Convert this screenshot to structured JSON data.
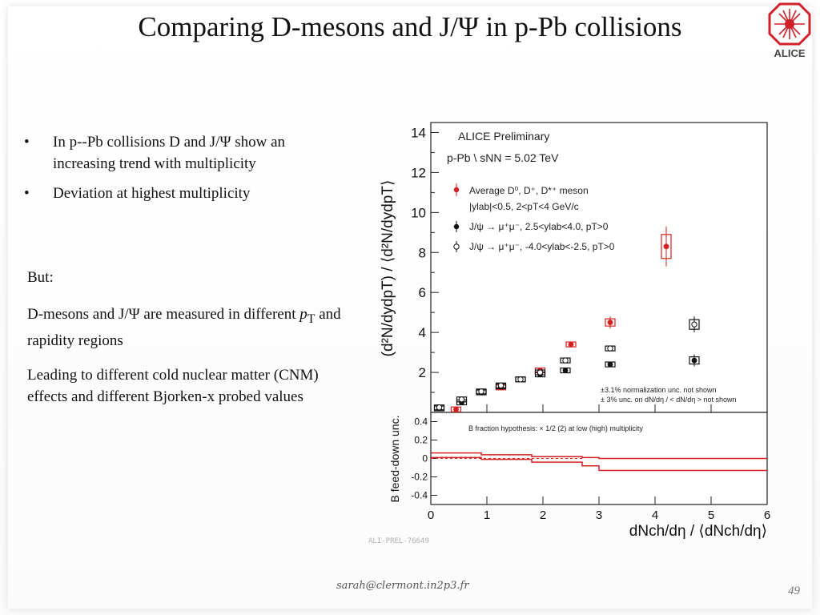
{
  "title": "Comparing D-mesons and J/Ψ in p-Pb collisions",
  "logo": {
    "text": "ALICE",
    "icon": "alice-logo-icon",
    "color": "#d0202a"
  },
  "bullets": [
    {
      "symbol": "•",
      "text": "In p--Pb collisions D and J/Ψ show an increasing trend with multiplicity"
    },
    {
      "symbol": "•",
      "text": "Deviation at highest multiplicity"
    }
  ],
  "but_label": "But:",
  "paragraph1": {
    "prefix": "D-mesons and J/Ψ are measured in different ",
    "pt": "p",
    "pt_sub": "T",
    "suffix": " and rapidity regions"
  },
  "paragraph2": "Leading to different cold nuclear matter (CNM) effects and different Bjorken-x probed values",
  "footer": {
    "email": "sarah@clermont.in2p3.fr",
    "page": "49"
  },
  "colors": {
    "red": "#d42020",
    "black": "#111111"
  },
  "chart_data": [
    {
      "type": "scatter",
      "ylim": [
        0,
        14.5
      ],
      "xlim": [
        0,
        6
      ],
      "yticks": [
        2,
        4,
        6,
        8,
        10,
        12,
        14
      ],
      "ylabel": "(d²N/dydpT) / ⟨d²N/dydpT⟩",
      "texts": {
        "preliminary": "ALICE Preliminary",
        "system": "p-Pb \\ sNN = 5.02 TeV",
        "note1": "±3.1% normalization unc. not shown",
        "note2": "±  3% unc. on dN/dη / < dN/dη > not shown"
      },
      "legend": [
        {
          "label": "Average D⁰, D⁺, D*⁺ meson",
          "sublabel": "|ylab|<0.5, 2<pT<4 GeV/c",
          "marker": "filled",
          "color": "#d42020"
        },
        {
          "label": "J/ψ → μ⁺μ⁻, 2.5<ylab<4.0, pT>0",
          "marker": "filled",
          "color": "#111111"
        },
        {
          "label": "J/ψ → μ⁺μ⁻, -4.0<ylab<-2.5, pT>0",
          "marker": "open",
          "color": "#111111"
        }
      ],
      "series": [
        {
          "name": "Average D⁰, D⁺, D*⁺ meson",
          "marker": "filled",
          "color": "#d42020",
          "x": [
            0.45,
            1.25,
            1.95,
            2.5,
            3.2,
            4.2
          ],
          "y": [
            0.15,
            1.25,
            2.1,
            3.4,
            4.5,
            8.3
          ],
          "err": [
            0.05,
            0.05,
            0.1,
            0.15,
            0.3,
            1.0
          ]
        },
        {
          "name": "J/ψ → μ⁺μ⁻, 2.5<ylab<4.0, pT>0",
          "marker": "filled",
          "color": "#111111",
          "x": [
            0.15,
            0.55,
            0.9,
            1.25,
            1.6,
            1.95,
            2.4,
            3.2,
            4.7
          ],
          "y": [
            0.2,
            0.5,
            1.0,
            1.3,
            1.65,
            1.9,
            2.1,
            2.4,
            2.6
          ],
          "err": [
            0.05,
            0.05,
            0.05,
            0.05,
            0.05,
            0.1,
            0.1,
            0.1,
            0.3
          ]
        },
        {
          "name": "J/ψ → μ⁺μ⁻, -4.0<ylab<-2.5, pT>0",
          "marker": "open",
          "color": "#111111",
          "x": [
            0.15,
            0.55,
            0.9,
            1.25,
            1.6,
            1.95,
            2.4,
            3.2,
            4.7
          ],
          "y": [
            0.25,
            0.65,
            1.05,
            1.35,
            1.65,
            2.0,
            2.6,
            3.2,
            4.4
          ],
          "err": [
            0.05,
            0.05,
            0.05,
            0.05,
            0.05,
            0.1,
            0.1,
            0.15,
            0.4
          ]
        }
      ]
    },
    {
      "type": "line",
      "ylabel": "B feed-down unc.",
      "xlabel": "dNch/dη / ⟨dNch/dη⟩",
      "xlim": [
        0,
        6
      ],
      "ylim": [
        -0.5,
        0.5
      ],
      "xticks": [
        0,
        1,
        2,
        3,
        4,
        5,
        6
      ],
      "yticks": [
        0.4,
        0.2,
        0,
        -0.2,
        -0.4
      ],
      "annotation": "B fraction hypothesis: × 1/2 (2) at low (high) multiplicity",
      "series": [
        {
          "color": "#d42020",
          "x": [
            0,
            0.9,
            0.9,
            1.8,
            1.8,
            2.7,
            2.7,
            3.0,
            3.0,
            6.0
          ],
          "y": [
            0.06,
            0.06,
            0.04,
            0.04,
            0.02,
            0.02,
            0.01,
            0.01,
            0.0,
            0.0
          ]
        },
        {
          "color": "#d42020",
          "x": [
            0,
            0.9,
            0.9,
            1.8,
            1.8,
            2.7,
            2.7,
            3.0,
            3.0,
            6.0
          ],
          "y": [
            0.01,
            0.01,
            -0.01,
            -0.01,
            -0.04,
            -0.04,
            -0.08,
            -0.08,
            -0.13,
            -0.13
          ]
        },
        {
          "color": "#d42020",
          "dashed": true,
          "x": [
            0,
            2.7
          ],
          "y": [
            0.0,
            0.0
          ]
        }
      ]
    }
  ],
  "reference": "ALI-PREL-76649"
}
